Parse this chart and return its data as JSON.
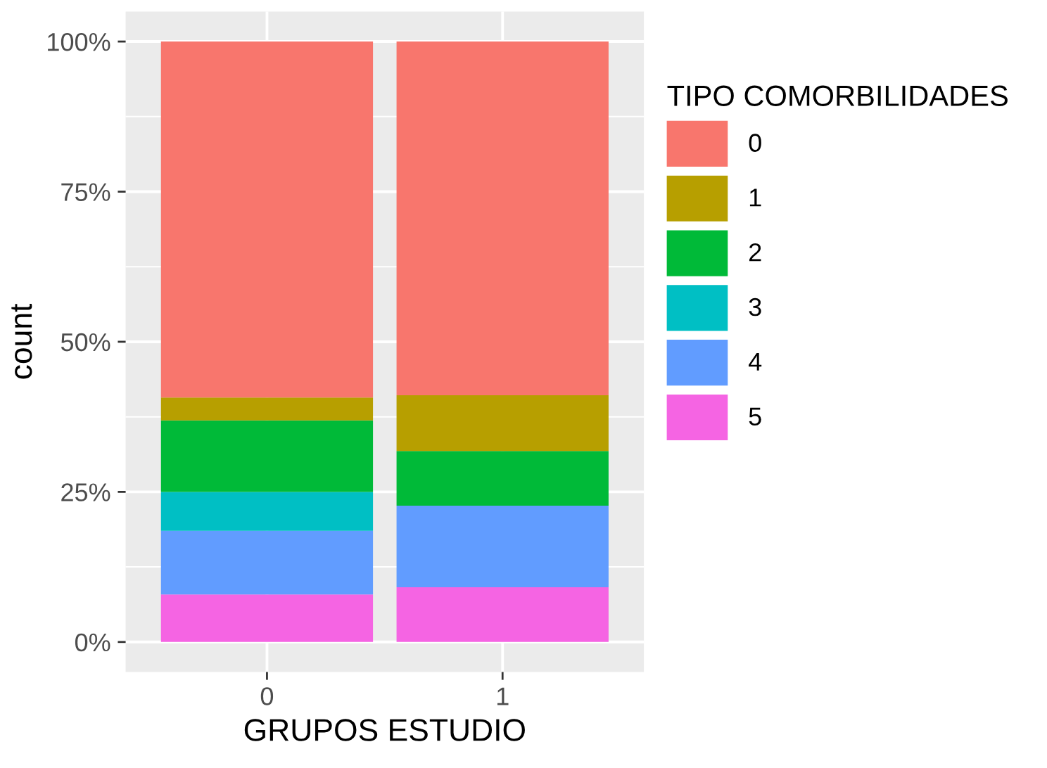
{
  "chart_data": {
    "type": "bar",
    "stacked": true,
    "xlabel": "GRUPOS ESTUDIO",
    "ylabel": "count",
    "legend_title": "TIPO COMORBILIDADES",
    "categories": [
      "0",
      "1"
    ],
    "series": [
      {
        "name": "5",
        "color": "#f564e3",
        "values": [
          7.9,
          9.1
        ]
      },
      {
        "name": "4",
        "color": "#619cff",
        "values": [
          10.6,
          13.6
        ]
      },
      {
        "name": "3",
        "color": "#00bfc4",
        "values": [
          6.5,
          0
        ]
      },
      {
        "name": "2",
        "color": "#00ba38",
        "values": [
          11.9,
          9.1
        ]
      },
      {
        "name": "1",
        "color": "#b79f00",
        "values": [
          3.8,
          9.3
        ]
      },
      {
        "name": "0",
        "color": "#f8766d",
        "values": [
          59.3,
          58.9
        ]
      }
    ],
    "ylim": [
      -5,
      105
    ],
    "yticks": [
      {
        "value": 0,
        "label": "0%"
      },
      {
        "value": 25,
        "label": "25%"
      },
      {
        "value": 50,
        "label": "50%"
      },
      {
        "value": 75,
        "label": "75%"
      },
      {
        "value": 100,
        "label": "100%"
      }
    ],
    "grid": true,
    "legend": "right"
  }
}
